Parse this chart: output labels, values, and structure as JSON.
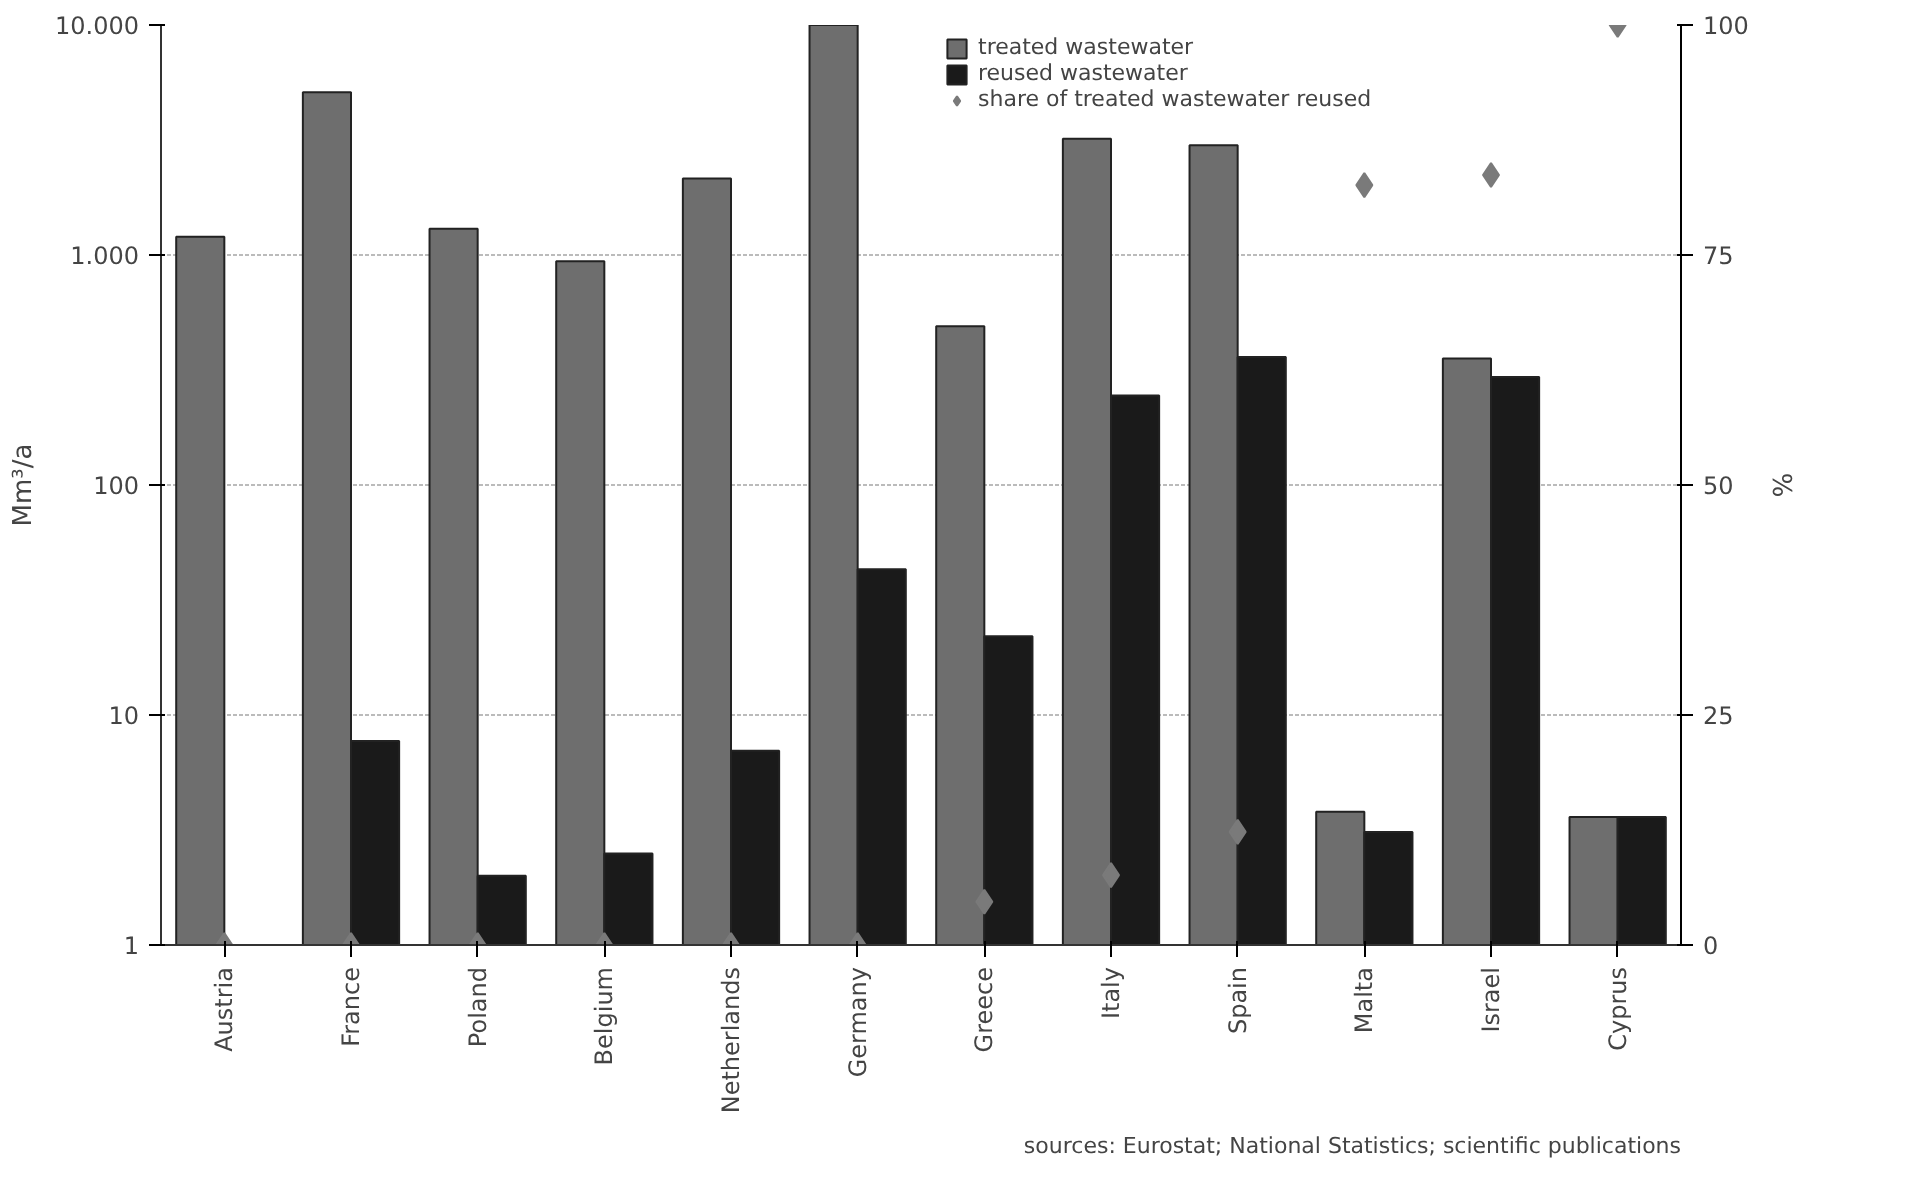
{
  "chart_data": {
    "type": "bar",
    "ylabel": "Mm³/a",
    "y2label": "%",
    "log": "y",
    "grid": "y",
    "legend": "top",
    "categories": [
      "Austria",
      "France",
      "Poland",
      "Belgium",
      "Netherlands",
      "Germany",
      "Greece",
      "Italy",
      "Spain",
      "Malta",
      "Israel",
      "Cyprus"
    ],
    "series": [
      {
        "name": "treated wastewater",
        "color": "#6e6e6e",
        "values": [
          1200,
          5100,
          1300,
          940,
          2150,
          10000,
          490,
          3200,
          3000,
          3.8,
          355,
          3.6
        ]
      },
      {
        "name": "reused wastewater",
        "color": "#1a1a1a",
        "values": [
          null,
          7.7,
          2.0,
          2.5,
          7.0,
          43,
          22,
          245,
          360,
          3.1,
          295,
          3.6
        ]
      },
      {
        "name": "share of treated wastewater reused",
        "type": "scatter",
        "axis": "y2",
        "marker": "diamond",
        "color": "#7a7a7a",
        "values": [
          0,
          0,
          0,
          0,
          0,
          0,
          4.7,
          7.6,
          12.3,
          82.6,
          83.7,
          100
        ]
      }
    ],
    "ylim": [
      1,
      10000
    ],
    "yticks": [
      {
        "value": 1,
        "label": "1"
      },
      {
        "value": 10,
        "label": "10"
      },
      {
        "value": 100,
        "label": "100"
      },
      {
        "value": 1000,
        "label": "1.000"
      },
      {
        "value": 10000,
        "label": "10.000"
      }
    ],
    "y2lim": [
      0,
      100
    ],
    "y2ticks": [
      0,
      25,
      50,
      75,
      100
    ],
    "annotations": [
      "sources: Eurostat; National Statistics; scientific publications"
    ]
  }
}
